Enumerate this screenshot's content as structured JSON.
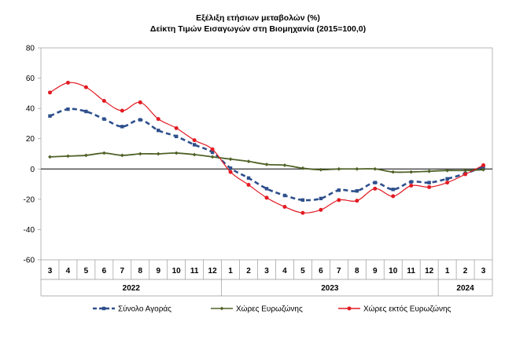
{
  "chart_data": {
    "type": "line",
    "title": "Εξέλιξη ετήσιων μεταβολών (%)",
    "subtitle": "Δείκτη Τιμών Εισαγωγών στη Βιομηχανία (2015=100,0)",
    "categories": [
      "3",
      "4",
      "5",
      "6",
      "7",
      "8",
      "9",
      "10",
      "11",
      "12",
      "1",
      "2",
      "3",
      "4",
      "5",
      "6",
      "7",
      "8",
      "9",
      "10",
      "11",
      "12",
      "1",
      "2",
      "3"
    ],
    "year_groups": [
      {
        "label": "2022",
        "span": 10
      },
      {
        "label": "2023",
        "span": 12
      },
      {
        "label": "2024",
        "span": 3
      }
    ],
    "ylim": [
      -60,
      80
    ],
    "yticks": [
      80,
      60,
      40,
      20,
      0,
      -20,
      -40,
      -60
    ],
    "grid": false,
    "legend_position": "bottom",
    "series": [
      {
        "name": "Σύνολο Αγοράς",
        "color": "#2E4F8C",
        "style": "dashed",
        "values": [
          35,
          39.5,
          38,
          33,
          28,
          32.5,
          25.5,
          21.5,
          16,
          11,
          0.5,
          -6,
          -13,
          -17.5,
          -20.5,
          -19.5,
          -14,
          -14.5,
          -9,
          -13.5,
          -8.5,
          -9,
          -6.5,
          -3,
          1.5
        ]
      },
      {
        "name": "Χώρες Ευρωζώνης",
        "color": "#4F6228",
        "style": "solid",
        "values": [
          8,
          8.5,
          9,
          10.5,
          9,
          10,
          10,
          10.5,
          9.5,
          8,
          6.5,
          5,
          3,
          2.5,
          0.5,
          -0.5,
          0,
          0,
          0,
          -2,
          -2,
          -1.5,
          -1,
          -1,
          -0.5
        ]
      },
      {
        "name": "Χώρες εκτός Ευρωζώνης",
        "color": "#E31B23",
        "style": "solid",
        "values": [
          50.5,
          57,
          54,
          45,
          38.5,
          44,
          33,
          27,
          19,
          13,
          -2,
          -10.5,
          -19,
          -25,
          -29,
          -27,
          -20.5,
          -21,
          -13,
          -18,
          -11,
          -12,
          -9,
          -3.5,
          2.5
        ]
      }
    ]
  }
}
